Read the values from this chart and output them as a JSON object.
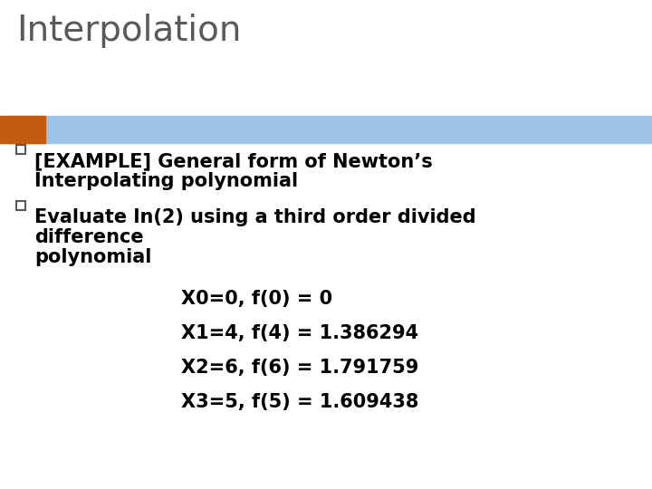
{
  "title": "Interpolation",
  "title_color": "#595959",
  "title_fontsize": 28,
  "background_color": "#ffffff",
  "header_bar_color": "#9dc3e6",
  "header_bar_left_color": "#c55a11",
  "bullet_square_color": "#595959",
  "bullet1_line1": "[EXAMPLE] General form of Newton’s",
  "bullet1_line2": "Interpolating polynomial",
  "bullet2_line1": "Evaluate ln(2) using a third order divided",
  "bullet2_line2": "difference",
  "bullet2_line3": "polynomial",
  "data_lines": [
    "X0=0, f(0) = 0",
    "X1=4, f(4) = 1.386294",
    "X2=6, f(6) = 1.791759",
    "X3=5, f(5) = 1.609438"
  ],
  "text_fontsize": 15,
  "data_fontsize": 15,
  "text_color": "#000000"
}
